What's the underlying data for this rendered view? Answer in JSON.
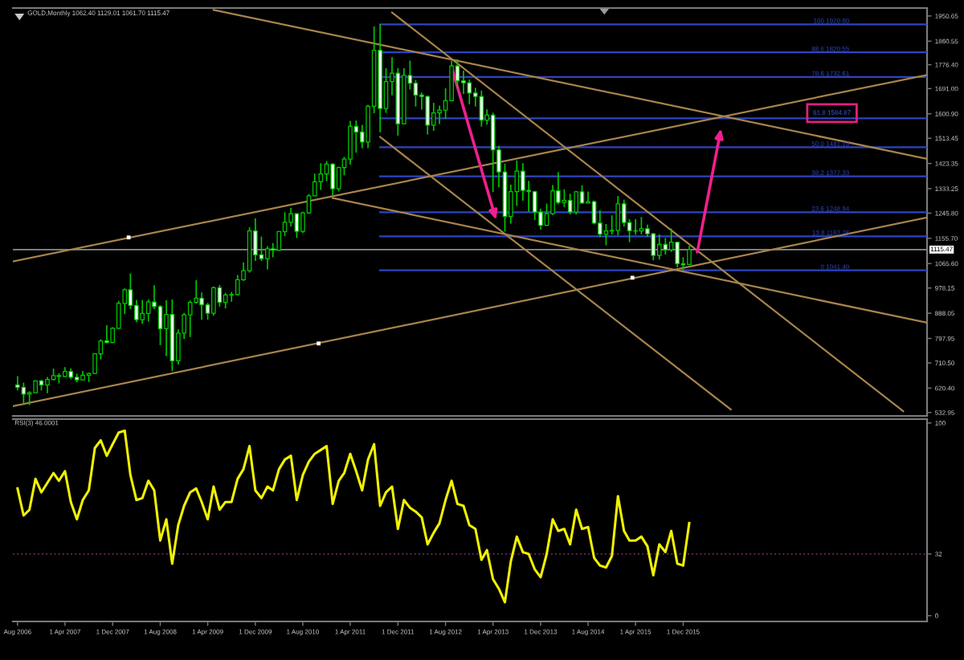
{
  "chart_data": [
    {
      "type": "candlestick",
      "title": "GOLD,Monthly 1062.40 1129.01 1061.70 1115.47",
      "x": [
        "2006-08",
        "2006-09",
        "2006-10",
        "2006-11",
        "2006-12",
        "2007-01",
        "2007-02",
        "2007-03",
        "2007-04",
        "2007-05",
        "2007-06",
        "2007-07",
        "2007-08",
        "2007-09",
        "2007-10",
        "2007-11",
        "2007-12",
        "2008-01",
        "2008-02",
        "2008-03",
        "2008-04",
        "2008-05",
        "2008-06",
        "2008-07",
        "2008-08",
        "2008-09",
        "2008-10",
        "2008-11",
        "2008-12",
        "2009-01",
        "2009-02",
        "2009-03",
        "2009-04",
        "2009-05",
        "2009-06",
        "2009-07",
        "2009-08",
        "2009-09",
        "2009-10",
        "2009-11",
        "2009-12",
        "2010-01",
        "2010-02",
        "2010-03",
        "2010-04",
        "2010-05",
        "2010-06",
        "2010-07",
        "2010-08",
        "2010-09",
        "2010-10",
        "2010-11",
        "2010-12",
        "2011-01",
        "2011-02",
        "2011-03",
        "2011-04",
        "2011-05",
        "2011-06",
        "2011-07",
        "2011-08",
        "2011-09",
        "2011-10",
        "2011-11",
        "2011-12",
        "2012-01",
        "2012-02",
        "2012-03",
        "2012-04",
        "2012-05",
        "2012-06",
        "2012-07",
        "2012-08",
        "2012-09",
        "2012-10",
        "2012-11",
        "2012-12",
        "2013-01",
        "2013-02",
        "2013-03",
        "2013-04",
        "2013-05",
        "2013-06",
        "2013-07",
        "2013-08",
        "2013-09",
        "2013-10",
        "2013-11",
        "2013-12",
        "2014-01",
        "2014-02",
        "2014-03",
        "2014-04",
        "2014-05",
        "2014-06",
        "2014-07",
        "2014-08",
        "2014-09",
        "2014-10",
        "2014-11",
        "2014-12",
        "2015-01",
        "2015-02",
        "2015-03",
        "2015-04",
        "2015-05",
        "2015-06",
        "2015-07",
        "2015-08",
        "2015-09",
        "2015-10",
        "2015-11",
        "2015-12",
        "2016-01"
      ],
      "ohlc": [
        [
          632,
          663,
          612,
          623
        ],
        [
          623,
          640,
          560,
          599
        ],
        [
          599,
          609,
          560,
          604
        ],
        [
          604,
          648,
          603,
          646
        ],
        [
          646,
          650,
          612,
          632
        ],
        [
          632,
          660,
          602,
          651
        ],
        [
          651,
          690,
          648,
          665
        ],
        [
          665,
          674,
          637,
          662
        ],
        [
          662,
          695,
          660,
          680
        ],
        [
          680,
          691,
          652,
          659
        ],
        [
          659,
          672,
          641,
          650
        ],
        [
          650,
          682,
          648,
          666
        ],
        [
          666,
          676,
          642,
          673
        ],
        [
          673,
          745,
          670,
          743
        ],
        [
          743,
          795,
          723,
          789
        ],
        [
          789,
          845,
          781,
          783
        ],
        [
          783,
          838,
          781,
          834
        ],
        [
          834,
          932,
          832,
          923
        ],
        [
          923,
          977,
          885,
          972
        ],
        [
          972,
          1030,
          903,
          916
        ],
        [
          916,
          936,
          856,
          865
        ],
        [
          865,
          935,
          850,
          887
        ],
        [
          887,
          937,
          858,
          928
        ],
        [
          928,
          988,
          903,
          912
        ],
        [
          912,
          917,
          774,
          833
        ],
        [
          833,
          934,
          735,
          884
        ],
        [
          884,
          937,
          681,
          718
        ],
        [
          718,
          830,
          705,
          817
        ],
        [
          817,
          889,
          796,
          882
        ],
        [
          882,
          934,
          803,
          927
        ],
        [
          927,
          1006,
          922,
          942
        ],
        [
          942,
          962,
          865,
          918
        ],
        [
          918,
          925,
          865,
          888
        ],
        [
          888,
          984,
          880,
          979
        ],
        [
          979,
          989,
          912,
          927
        ],
        [
          927,
          961,
          905,
          953
        ],
        [
          953,
          964,
          929,
          955
        ],
        [
          955,
          1025,
          951,
          1008
        ],
        [
          1008,
          1070,
          1003,
          1040
        ],
        [
          1040,
          1195,
          1033,
          1182
        ],
        [
          1182,
          1227,
          1075,
          1097
        ],
        [
          1097,
          1162,
          1075,
          1083
        ],
        [
          1083,
          1128,
          1045,
          1118
        ],
        [
          1118,
          1139,
          1088,
          1113
        ],
        [
          1113,
          1181,
          1111,
          1180
        ],
        [
          1180,
          1249,
          1164,
          1213
        ],
        [
          1213,
          1265,
          1198,
          1244
        ],
        [
          1244,
          1245,
          1157,
          1181
        ],
        [
          1181,
          1251,
          1175,
          1247
        ],
        [
          1247,
          1314,
          1243,
          1308
        ],
        [
          1308,
          1387,
          1306,
          1358
        ],
        [
          1358,
          1424,
          1329,
          1386
        ],
        [
          1386,
          1432,
          1360,
          1421
        ],
        [
          1421,
          1424,
          1308,
          1333
        ],
        [
          1333,
          1412,
          1324,
          1409
        ],
        [
          1409,
          1447,
          1381,
          1439
        ],
        [
          1439,
          1576,
          1419,
          1556
        ],
        [
          1556,
          1577,
          1462,
          1536
        ],
        [
          1536,
          1561,
          1478,
          1500
        ],
        [
          1500,
          1633,
          1478,
          1628
        ],
        [
          1628,
          1913,
          1603,
          1828
        ],
        [
          1828,
          1920.8,
          1535,
          1620
        ],
        [
          1620,
          1764,
          1604,
          1716
        ],
        [
          1716,
          1803,
          1667,
          1746
        ],
        [
          1746,
          1764,
          1523,
          1565
        ],
        [
          1565,
          1764,
          1563,
          1738
        ],
        [
          1738,
          1791,
          1688,
          1710
        ],
        [
          1710,
          1722,
          1627,
          1668
        ],
        [
          1668,
          1677,
          1616,
          1663
        ],
        [
          1663,
          1666,
          1527,
          1560
        ],
        [
          1560,
          1640,
          1540,
          1604
        ],
        [
          1604,
          1630,
          1564,
          1614
        ],
        [
          1614,
          1692,
          1583,
          1648
        ],
        [
          1648,
          1790,
          1645,
          1772
        ],
        [
          1772,
          1796,
          1692,
          1719
        ],
        [
          1719,
          1755,
          1672,
          1712
        ],
        [
          1712,
          1723,
          1635,
          1675
        ],
        [
          1675,
          1694,
          1627,
          1663
        ],
        [
          1663,
          1684,
          1555,
          1578
        ],
        [
          1578,
          1617,
          1562,
          1596
        ],
        [
          1596,
          1605,
          1321,
          1472
        ],
        [
          1472,
          1487,
          1338,
          1393
        ],
        [
          1393,
          1423,
          1180,
          1234
        ],
        [
          1234,
          1348,
          1208,
          1323
        ],
        [
          1323,
          1434,
          1272,
          1396
        ],
        [
          1396,
          1424,
          1290,
          1327
        ],
        [
          1327,
          1361,
          1251,
          1323
        ],
        [
          1323,
          1326,
          1221,
          1250
        ],
        [
          1250,
          1262,
          1187,
          1202
        ],
        [
          1202,
          1280,
          1200,
          1244
        ],
        [
          1244,
          1346,
          1239,
          1326
        ],
        [
          1326,
          1392,
          1277,
          1284
        ],
        [
          1284,
          1331,
          1268,
          1291
        ],
        [
          1291,
          1315,
          1241,
          1250
        ],
        [
          1250,
          1325,
          1241,
          1322
        ],
        [
          1322,
          1345,
          1280,
          1282
        ],
        [
          1282,
          1323,
          1280,
          1287
        ],
        [
          1287,
          1291,
          1206,
          1210
        ],
        [
          1210,
          1256,
          1160,
          1171
        ],
        [
          1171,
          1207,
          1131,
          1182
        ],
        [
          1182,
          1238,
          1170,
          1184
        ],
        [
          1184,
          1307,
          1167,
          1279
        ],
        [
          1279,
          1294,
          1198,
          1212
        ],
        [
          1212,
          1224,
          1142,
          1183
        ],
        [
          1183,
          1224,
          1169,
          1182
        ],
        [
          1182,
          1232,
          1170,
          1190
        ],
        [
          1190,
          1205,
          1162,
          1172
        ],
        [
          1172,
          1175,
          1077,
          1095
        ],
        [
          1095,
          1170,
          1080,
          1134
        ],
        [
          1134,
          1157,
          1098,
          1115
        ],
        [
          1115,
          1191,
          1107,
          1142
        ],
        [
          1142,
          1144,
          1052,
          1065
        ],
        [
          1065,
          1088,
          1041.4,
          1061
        ],
        [
          1062.4,
          1129.01,
          1061.7,
          1115.47
        ]
      ],
      "color": "#00c800",
      "colors": [
        "#ffffff",
        "#ffffff",
        "#000000",
        "#000000",
        "#ffffff",
        "#000000",
        "#000000",
        "#ffffff",
        "#000000",
        "#ffffff",
        "#ffffff",
        "#000000",
        "#000000",
        "#000000",
        "#000000",
        "#ffffff",
        "#000000",
        "#000000",
        "#000000",
        "#ffffff",
        "#ffffff",
        "#000000",
        "#000000",
        "#ffffff",
        "#ffffff",
        "#000000",
        "#ffffff",
        "#000000",
        "#000000",
        "#000000",
        "#000000",
        "#ffffff",
        "#ffffff",
        "#000000",
        "#ffffff",
        "#000000",
        "#000000",
        "#000000",
        "#000000",
        "#000000",
        "#ffffff",
        "#ffffff",
        "#000000",
        "#ffffff",
        "#000000",
        "#000000",
        "#000000",
        "#ffffff",
        "#000000",
        "#000000",
        "#000000",
        "#000000",
        "#000000",
        "#ffffff",
        "#000000",
        "#000000",
        "#000000",
        "#ffffff",
        "#ffffff",
        "#000000",
        "#000000",
        "#ffffff",
        "#000000",
        "#000000",
        "#ffffff",
        "#000000",
        "#ffffff",
        "#ffffff",
        "#ffffff",
        "#ffffff",
        "#000000",
        "#000000",
        "#000000",
        "#000000",
        "#ffffff",
        "#ffffff",
        "#ffffff",
        "#ffffff",
        "#ffffff",
        "#000000",
        "#ffffff",
        "#ffffff",
        "#ffffff",
        "#000000",
        "#000000",
        "#ffffff",
        "#ffffff",
        "#ffffff",
        "#ffffff",
        "#000000",
        "#000000",
        "#ffffff",
        "#000000",
        "#ffffff",
        "#000000",
        "#ffffff",
        "#000000",
        "#ffffff",
        "#ffffff",
        "#000000",
        "#000000",
        "#000000",
        "#ffffff",
        "#ffffff",
        "#ffffff",
        "#000000",
        "#ffffff",
        "#ffffff",
        "#000000",
        "#ffffff",
        "#000000",
        "#ffffff",
        "#ffffff",
        "#000000"
      ],
      "xlim": [
        "2006-07-08",
        "2019-05-03"
      ],
      "ylim": [
        521,
        1979
      ],
      "yticks": [
        {
          "value": 1950.65,
          "label": "1950.65"
        },
        {
          "value": 1860.55,
          "label": "1860.55"
        },
        {
          "value": 1776.4,
          "label": "1776.40"
        },
        {
          "value": 1691.0,
          "label": "1691.00"
        },
        {
          "value": 1600.9,
          "label": "1600.90"
        },
        {
          "value": 1513.45,
          "label": "1513.45"
        },
        {
          "value": 1423.35,
          "label": "1423.35"
        },
        {
          "value": 1333.25,
          "label": "1333.25"
        },
        {
          "value": 1245.8,
          "label": "1245.80"
        },
        {
          "value": 1155.7,
          "label": "1155.70"
        },
        {
          "value": 1065.6,
          "label": "1065.60"
        },
        {
          "value": 978.15,
          "label": "978.15"
        },
        {
          "value": 888.05,
          "label": "888.05"
        },
        {
          "value": 797.95,
          "label": "797.95"
        },
        {
          "value": 710.5,
          "label": "710.50"
        },
        {
          "value": 620.4,
          "label": "620.40"
        },
        {
          "value": 532.95,
          "label": "532.95"
        }
      ],
      "tick_labels": "y",
      "ref_lines": [
        {
          "axis": "y",
          "value": 1115.47,
          "label": "1115.47",
          "color": "#8c8c8c"
        }
      ],
      "series": [
        {
          "type": "line",
          "name": "100 1920.80",
          "color": "#2e44c0",
          "x": [
            "2011-09",
            "2019-05-03"
          ],
          "values": [
            1920.8,
            1920.8
          ]
        },
        {
          "type": "line",
          "name": "88.6 1820.55",
          "color": "#2e44c0",
          "x": [
            "2011-09",
            "2019-05-03"
          ],
          "values": [
            1820.55,
            1820.55
          ]
        },
        {
          "type": "line",
          "name": "78.6 1732.61",
          "color": "#2e44c0",
          "x": [
            "2011-09",
            "2019-05-03"
          ],
          "values": [
            1732.61,
            1732.61
          ]
        },
        {
          "type": "line",
          "color": "#2e44c0",
          "x": [
            "2011-09",
            "2019-05-03"
          ],
          "values": [
            1584.87,
            1584.87
          ]
        },
        {
          "type": "line",
          "name": "50.0 1481.10",
          "color": "#2e44c0",
          "x": [
            "2011-09",
            "2019-05-03"
          ],
          "values": [
            1481.1,
            1481.1
          ]
        },
        {
          "type": "line",
          "name": "38.2 1377.33",
          "color": "#2e44c0",
          "x": [
            "2011-09",
            "2019-05-03"
          ],
          "values": [
            1377.33,
            1377.33
          ]
        },
        {
          "type": "line",
          "name": "23.6 1248.94",
          "color": "#2e44c0",
          "x": [
            "2011-09",
            "2019-05-03"
          ],
          "values": [
            1248.94,
            1248.94
          ]
        },
        {
          "type": "line",
          "name": "13.8 1162.76",
          "color": "#2e44c0",
          "x": [
            "2011-09",
            "2019-05-03"
          ],
          "values": [
            1162.76,
            1162.76
          ]
        },
        {
          "type": "line",
          "name": "0 1041.40",
          "color": "#2e44c0",
          "x": [
            "2011-09",
            "2019-05-03"
          ],
          "values": [
            1041.4,
            1041.4
          ]
        },
        {
          "type": "line",
          "color": "#a8844c",
          "x": [
            "2009-05",
            "2019-05-03"
          ],
          "values": [
            1972,
            1440
          ]
        },
        {
          "type": "line",
          "color": "#a8844c",
          "x": [
            "2011-01",
            "2019-05-03"
          ],
          "values": [
            1300,
            854
          ]
        },
        {
          "type": "line",
          "color": "#a8844c",
          "x": [
            "2011-11",
            "2019-01"
          ],
          "values": [
            1963,
            538
          ]
        },
        {
          "type": "line",
          "color": "#a8844c",
          "x": [
            "2011-09",
            "2016-08"
          ],
          "values": [
            1518,
            544
          ]
        },
        {
          "type": "line",
          "color": "#a8844c",
          "x": [
            "2006-07-08",
            "2019-05-03"
          ],
          "values": [
            1073,
            1740
          ]
        },
        {
          "type": "line",
          "color": "#a8844c",
          "x": [
            "2006-07-08",
            "2019-05-03"
          ],
          "values": [
            556,
            1230
          ]
        },
        {
          "type": "scatter",
          "color": "#ffffff",
          "marker": "square",
          "x": [
            "2008-02-21",
            "2010-10-21",
            "2015-03-16"
          ],
          "values": [
            1159,
            780,
            1015
          ]
        }
      ],
      "annotations": [
        {
          "text": "61.8 1584.87",
          "x": "2018-01",
          "y": 1584.87
        }
      ]
    },
    {
      "type": "line",
      "title": "RSI(3) 46.0001",
      "x": [
        "2006-08",
        "2006-09",
        "2006-10",
        "2006-11",
        "2006-12",
        "2007-01",
        "2007-02",
        "2007-03",
        "2007-04",
        "2007-05",
        "2007-06",
        "2007-07",
        "2007-08",
        "2007-09",
        "2007-10",
        "2007-11",
        "2007-12",
        "2008-01",
        "2008-02",
        "2008-03",
        "2008-04",
        "2008-05",
        "2008-06",
        "2008-07",
        "2008-08",
        "2008-09",
        "2008-10",
        "2008-11",
        "2008-12",
        "2009-01",
        "2009-02",
        "2009-03",
        "2009-04",
        "2009-05",
        "2009-06",
        "2009-07",
        "2009-08",
        "2009-09",
        "2009-10",
        "2009-11",
        "2009-12",
        "2010-01",
        "2010-02",
        "2010-03",
        "2010-04",
        "2010-05",
        "2010-06",
        "2010-07",
        "2010-08",
        "2010-09",
        "2010-10",
        "2010-11",
        "2010-12",
        "2011-01",
        "2011-02",
        "2011-03",
        "2011-04",
        "2011-05",
        "2011-06",
        "2011-07",
        "2011-08",
        "2011-09",
        "2011-10",
        "2011-11",
        "2011-12",
        "2012-01",
        "2012-02",
        "2012-03",
        "2012-04",
        "2012-05",
        "2012-06",
        "2012-07",
        "2012-08",
        "2012-09",
        "2012-10",
        "2012-11",
        "2012-12",
        "2013-01",
        "2013-02",
        "2013-03",
        "2013-04",
        "2013-05",
        "2013-06",
        "2013-07",
        "2013-08",
        "2013-09",
        "2013-10",
        "2013-11",
        "2013-12",
        "2014-01",
        "2014-02",
        "2014-03",
        "2014-04",
        "2014-05",
        "2014-06",
        "2014-07",
        "2014-08",
        "2014-09",
        "2014-10",
        "2014-11",
        "2014-12",
        "2015-01",
        "2015-02",
        "2015-03",
        "2015-04",
        "2015-05",
        "2015-06",
        "2015-07",
        "2015-08",
        "2015-09",
        "2015-10",
        "2015-11",
        "2015-12",
        "2016-01"
      ],
      "values": [
        66,
        52,
        55,
        71,
        64,
        69,
        74,
        70,
        75,
        59,
        50,
        60,
        65,
        87,
        91,
        83,
        89,
        95,
        96,
        73,
        60,
        61,
        70,
        65,
        39,
        50,
        27,
        47,
        57,
        64,
        66,
        59,
        50,
        67,
        55,
        59,
        59,
        71,
        76,
        88,
        65,
        61,
        67,
        65,
        76,
        81,
        83,
        60,
        73,
        80,
        84,
        86,
        88,
        58,
        70,
        74,
        84,
        75,
        65,
        81,
        89,
        57,
        64,
        67,
        45,
        60,
        56,
        54,
        51,
        37,
        43,
        48,
        60,
        70,
        58,
        57,
        47,
        45,
        29,
        34,
        19,
        14,
        7,
        28,
        41,
        33,
        32,
        24,
        20,
        32,
        50,
        44,
        45,
        37,
        55,
        45,
        46,
        30,
        26,
        25,
        31,
        62,
        44,
        39,
        39,
        41,
        36,
        21,
        37,
        33,
        44,
        27,
        26,
        48
      ],
      "color": "#f2f200",
      "xlim": [
        "2006-07-08",
        "2019-05-03"
      ],
      "ylim": [
        -3,
        102
      ],
      "yticks": [
        100,
        32,
        0
      ],
      "xticks": [
        {
          "value": "2006-08",
          "label": "Aug 2006"
        },
        {
          "value": "2007-04",
          "label": "1 Apr 2007"
        },
        {
          "value": "2007-12",
          "label": "1 Dec 2007"
        },
        {
          "value": "2008-08",
          "label": "1 Aug 2008"
        },
        {
          "value": "2009-04",
          "label": "1 Apr 2009"
        },
        {
          "value": "2009-12",
          "label": "1 Dec 2009"
        },
        {
          "value": "2010-08",
          "label": "1 Aug 2010"
        },
        {
          "value": "2011-04",
          "label": "1 Apr 2011"
        },
        {
          "value": "2011-12",
          "label": "1 Dec 2011"
        },
        {
          "value": "2012-08",
          "label": "1 Aug 2012"
        },
        {
          "value": "2013-04",
          "label": "1 Apr 2013"
        },
        {
          "value": "2013-12",
          "label": "1 Dec 2013"
        },
        {
          "value": "2014-08",
          "label": "1 Aug 2014"
        },
        {
          "value": "2015-04",
          "label": "1 Apr 2015"
        },
        {
          "value": "2015-12",
          "label": "1 Dec 2015"
        }
      ],
      "ref_lines": [
        {
          "axis": "y",
          "value": 32,
          "color": "#5e2452",
          "line_style": "dotted"
        }
      ]
    }
  ]
}
